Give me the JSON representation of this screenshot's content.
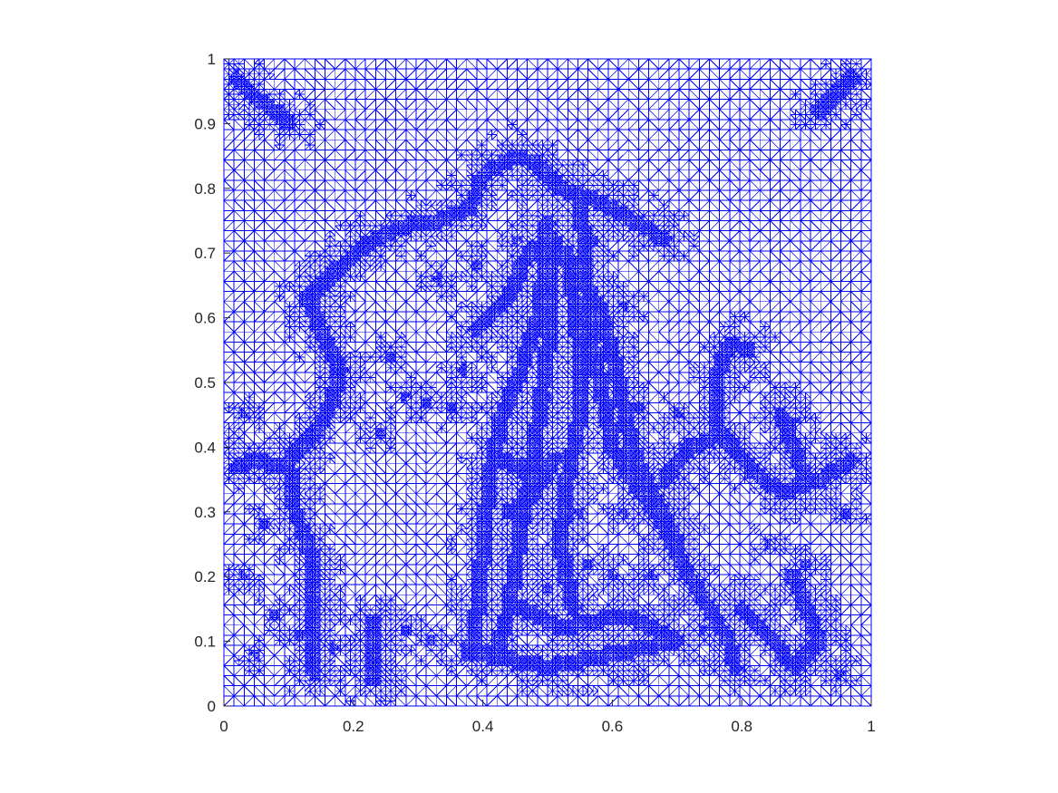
{
  "chart_data": {
    "type": "mesh",
    "title": "",
    "xlabel": "",
    "ylabel": "",
    "xlim": [
      0,
      1
    ],
    "ylim": [
      0,
      1
    ],
    "xticks": [
      0,
      0.2,
      0.4,
      0.6,
      0.8,
      1
    ],
    "xtick_labels": [
      "0",
      "0.2",
      "0.4",
      "0.6",
      "0.8",
      "1"
    ],
    "yticks": [
      0,
      0.1,
      0.2,
      0.3,
      0.4,
      0.5,
      0.6,
      0.7,
      0.8,
      0.9,
      1
    ],
    "ytick_labels": [
      "0",
      "0.1",
      "0.2",
      "0.3",
      "0.4",
      "0.5",
      "0.6",
      "0.7",
      "0.8",
      "0.9",
      "1"
    ],
    "grid": false,
    "legend": "none",
    "mesh_color": "#0000ff",
    "axis_color": "#262626",
    "background": "#ffffff",
    "base_cells_per_side": 64,
    "refined_paths": [
      [
        [
          0.14,
          0.05
        ],
        [
          0.14,
          0.22
        ],
        [
          0.11,
          0.3
        ],
        [
          0.1,
          0.38
        ],
        [
          0.14,
          0.42
        ],
        [
          0.17,
          0.48
        ],
        [
          0.18,
          0.52
        ],
        [
          0.15,
          0.58
        ],
        [
          0.13,
          0.63
        ],
        [
          0.17,
          0.67
        ],
        [
          0.23,
          0.72
        ],
        [
          0.27,
          0.74
        ],
        [
          0.33,
          0.75
        ],
        [
          0.38,
          0.77
        ],
        [
          0.4,
          0.82
        ],
        [
          0.45,
          0.85
        ],
        [
          0.48,
          0.84
        ],
        [
          0.52,
          0.8
        ],
        [
          0.58,
          0.78
        ],
        [
          0.65,
          0.74
        ],
        [
          0.68,
          0.72
        ]
      ],
      [
        [
          0.39,
          0.58
        ],
        [
          0.44,
          0.63
        ],
        [
          0.46,
          0.68
        ],
        [
          0.48,
          0.71
        ]
      ],
      [
        [
          0.55,
          0.79
        ],
        [
          0.56,
          0.68
        ],
        [
          0.57,
          0.55
        ],
        [
          0.59,
          0.45
        ],
        [
          0.6,
          0.4
        ],
        [
          0.63,
          0.35
        ],
        [
          0.68,
          0.28
        ],
        [
          0.72,
          0.2
        ],
        [
          0.78,
          0.1
        ],
        [
          0.79,
          0.06
        ]
      ],
      [
        [
          0.5,
          0.75
        ],
        [
          0.49,
          0.62
        ],
        [
          0.46,
          0.52
        ],
        [
          0.43,
          0.45
        ],
        [
          0.41,
          0.35
        ],
        [
          0.4,
          0.24
        ],
        [
          0.39,
          0.14
        ],
        [
          0.38,
          0.08
        ]
      ],
      [
        [
          0.51,
          0.72
        ],
        [
          0.5,
          0.55
        ],
        [
          0.48,
          0.4
        ],
        [
          0.46,
          0.28
        ],
        [
          0.44,
          0.15
        ],
        [
          0.42,
          0.08
        ]
      ],
      [
        [
          0.53,
          0.7
        ],
        [
          0.55,
          0.55
        ],
        [
          0.55,
          0.45
        ],
        [
          0.53,
          0.35
        ],
        [
          0.52,
          0.25
        ],
        [
          0.54,
          0.15
        ]
      ],
      [
        [
          0.58,
          0.62
        ],
        [
          0.61,
          0.5
        ],
        [
          0.63,
          0.4
        ],
        [
          0.66,
          0.33
        ],
        [
          0.7,
          0.25
        ]
      ],
      [
        [
          0.68,
          0.35
        ],
        [
          0.72,
          0.4
        ],
        [
          0.77,
          0.42
        ],
        [
          0.82,
          0.36
        ],
        [
          0.86,
          0.33
        ],
        [
          0.92,
          0.35
        ],
        [
          0.97,
          0.38
        ]
      ],
      [
        [
          0.76,
          0.43
        ],
        [
          0.76,
          0.5
        ],
        [
          0.78,
          0.56
        ],
        [
          0.81,
          0.55
        ]
      ],
      [
        [
          0.86,
          0.45
        ],
        [
          0.88,
          0.4
        ],
        [
          0.9,
          0.35
        ]
      ],
      [
        [
          0.8,
          0.15
        ],
        [
          0.85,
          0.1
        ],
        [
          0.88,
          0.06
        ],
        [
          0.92,
          0.1
        ],
        [
          0.88,
          0.2
        ]
      ],
      [
        [
          0.02,
          0.97
        ],
        [
          0.05,
          0.94
        ],
        [
          0.08,
          0.92
        ],
        [
          0.1,
          0.9
        ]
      ],
      [
        [
          0.97,
          0.97
        ],
        [
          0.95,
          0.95
        ],
        [
          0.92,
          0.92
        ]
      ],
      [
        [
          0.43,
          0.38
        ],
        [
          0.47,
          0.36
        ],
        [
          0.51,
          0.38
        ],
        [
          0.48,
          0.33
        ],
        [
          0.44,
          0.3
        ]
      ],
      [
        [
          0.4,
          0.08
        ],
        [
          0.5,
          0.06
        ],
        [
          0.6,
          0.08
        ],
        [
          0.7,
          0.1
        ],
        [
          0.62,
          0.14
        ],
        [
          0.52,
          0.12
        ],
        [
          0.44,
          0.16
        ]
      ],
      [
        [
          0.23,
          0.13
        ],
        [
          0.23,
          0.04
        ]
      ],
      [
        [
          0.02,
          0.37
        ],
        [
          0.05,
          0.38
        ],
        [
          0.08,
          0.37
        ]
      ]
    ],
    "refined_spots": [
      [
        0.26,
        0.54
      ],
      [
        0.24,
        0.42
      ],
      [
        0.06,
        0.28
      ],
      [
        0.03,
        0.2
      ],
      [
        0.08,
        0.14
      ],
      [
        0.28,
        0.48
      ],
      [
        0.31,
        0.47
      ],
      [
        0.37,
        0.52
      ],
      [
        0.35,
        0.46
      ],
      [
        0.33,
        0.66
      ],
      [
        0.39,
        0.68
      ],
      [
        0.12,
        0.11
      ],
      [
        0.17,
        0.09
      ],
      [
        0.05,
        0.08
      ],
      [
        0.28,
        0.12
      ],
      [
        0.32,
        0.1
      ],
      [
        0.62,
        0.3
      ],
      [
        0.66,
        0.2
      ],
      [
        0.6,
        0.2
      ],
      [
        0.74,
        0.12
      ],
      [
        0.84,
        0.25
      ],
      [
        0.9,
        0.22
      ],
      [
        0.95,
        0.05
      ],
      [
        0.88,
        0.44
      ],
      [
        0.7,
        0.45
      ],
      [
        0.64,
        0.46
      ],
      [
        0.45,
        0.72
      ],
      [
        0.57,
        0.72
      ],
      [
        0.62,
        0.62
      ],
      [
        0.5,
        0.48
      ],
      [
        0.55,
        0.3
      ],
      [
        0.45,
        0.22
      ],
      [
        0.5,
        0.18
      ],
      [
        0.56,
        0.22
      ],
      [
        0.03,
        0.45
      ],
      [
        0.96,
        0.3
      ]
    ]
  }
}
